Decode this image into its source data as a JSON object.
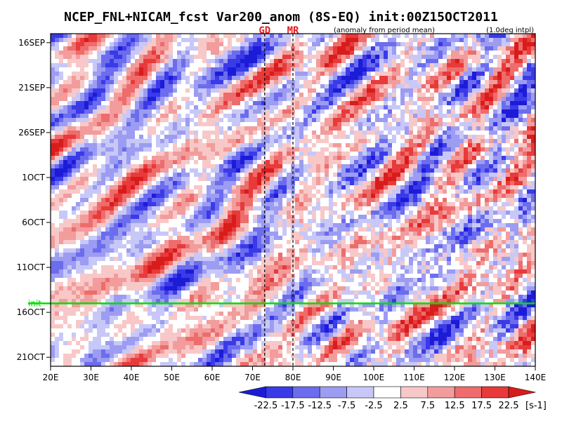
{
  "chart_data": {
    "type": "heatmap",
    "title": "NCEP_FNL+NICAM_fcst Var200_anom (8S-EQ) init:00Z15OCT2011",
    "subtitle_left": "(anomaly from period mean)",
    "subtitle_right": "(1.0deg intpl)",
    "markers": [
      {
        "label": "GD",
        "lon": 73,
        "color": "#e02020"
      },
      {
        "label": "MR",
        "lon": 80,
        "color": "#e02020"
      }
    ],
    "xlim": [
      20,
      140
    ],
    "x_ticks": [
      20,
      30,
      40,
      50,
      60,
      70,
      80,
      90,
      100,
      110,
      120,
      130,
      140
    ],
    "x_tick_labels": [
      "20E",
      "30E",
      "40E",
      "50E",
      "60E",
      "70E",
      "80E",
      "90E",
      "100E",
      "110E",
      "120E",
      "130E",
      "140E"
    ],
    "y_ticks": [
      "2011-09-16",
      "2011-09-21",
      "2011-09-26",
      "2011-10-01",
      "2011-10-06",
      "2011-10-11",
      "2011-10-16",
      "2011-10-21"
    ],
    "y_tick_labels": [
      "16SEP",
      "21SEP",
      "26SEP",
      "1OCT",
      "6OCT",
      "11OCT",
      "16OCT",
      "21OCT"
    ],
    "ylim": [
      "2011-09-15",
      "2011-10-22"
    ],
    "init_line": {
      "label": "init",
      "date": "2011-10-15",
      "color": "#00e000"
    },
    "colorbar": {
      "levels": [
        -22.5,
        -17.5,
        -12.5,
        -7.5,
        -2.5,
        2.5,
        7.5,
        12.5,
        17.5,
        22.5
      ],
      "level_labels": [
        "-22.5",
        "-17.5",
        "-12.5",
        "-7.5",
        "-2.5",
        "2.5",
        "7.5",
        "12.5",
        "17.5",
        "22.5"
      ],
      "colors": [
        "#1c1cd8",
        "#3a3ae8",
        "#6c6cee",
        "#9c9cf2",
        "#c8c8f8",
        "#ffffff",
        "#f8c8c8",
        "#f29c9c",
        "#ee6c6c",
        "#e83a3a",
        "#d81c1c"
      ],
      "units": "[s-1]"
    }
  }
}
